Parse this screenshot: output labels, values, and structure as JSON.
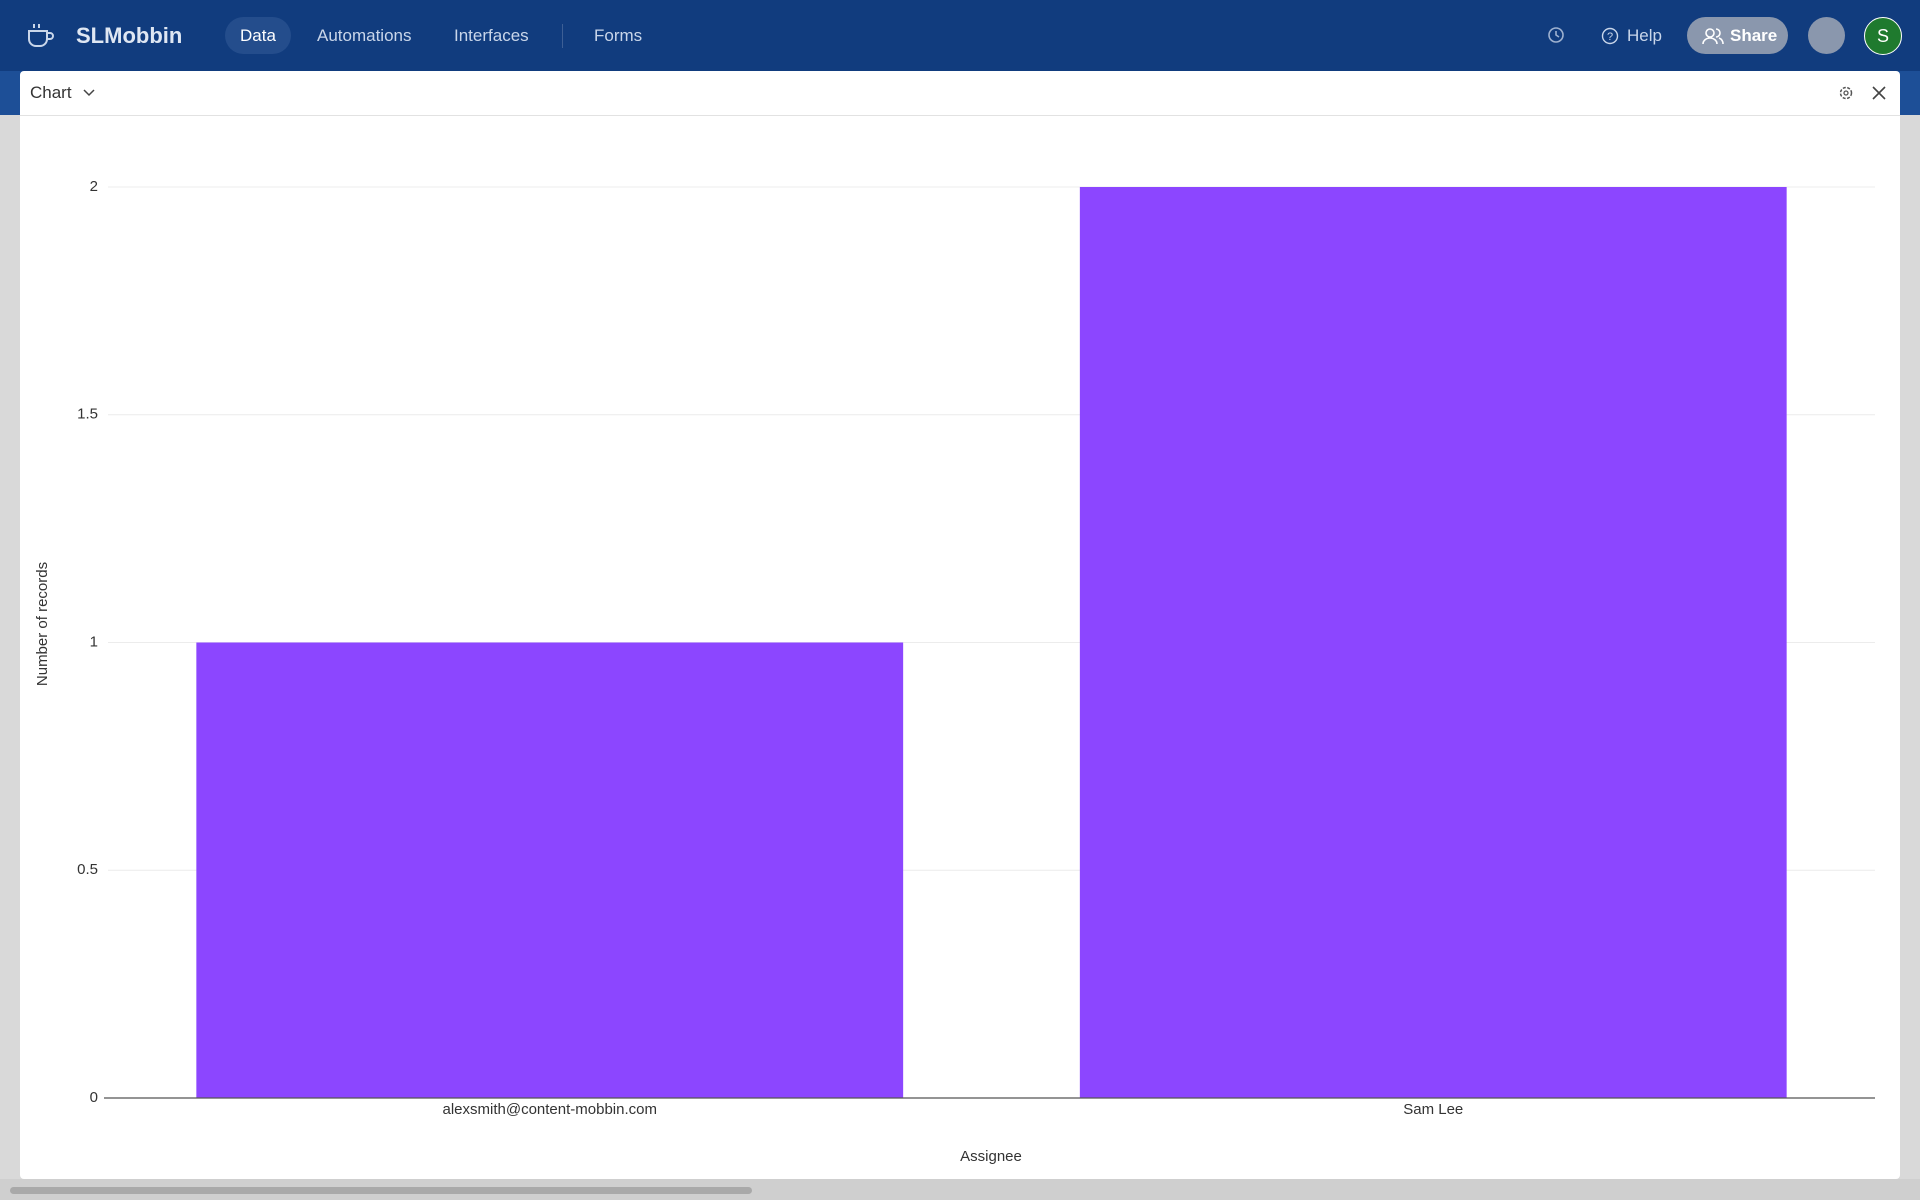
{
  "header": {
    "app_name": "SLMobbin",
    "nav": [
      "Data",
      "Automations",
      "Interfaces",
      "Forms"
    ],
    "help": "Help",
    "share": "Share",
    "avatar": "S"
  },
  "modal": {
    "title": "Chart"
  },
  "chart_data": {
    "type": "bar",
    "x_label": "Assignee",
    "y_label": "Number of records",
    "categories": [
      "alexsmith@content-mobbin.com",
      "Sam Lee"
    ],
    "values": [
      1,
      2
    ],
    "color": "#8c46ff",
    "ylim": [
      0,
      2
    ],
    "yticks": [
      0,
      0.5,
      1,
      1.5,
      2
    ],
    "grid": true
  }
}
